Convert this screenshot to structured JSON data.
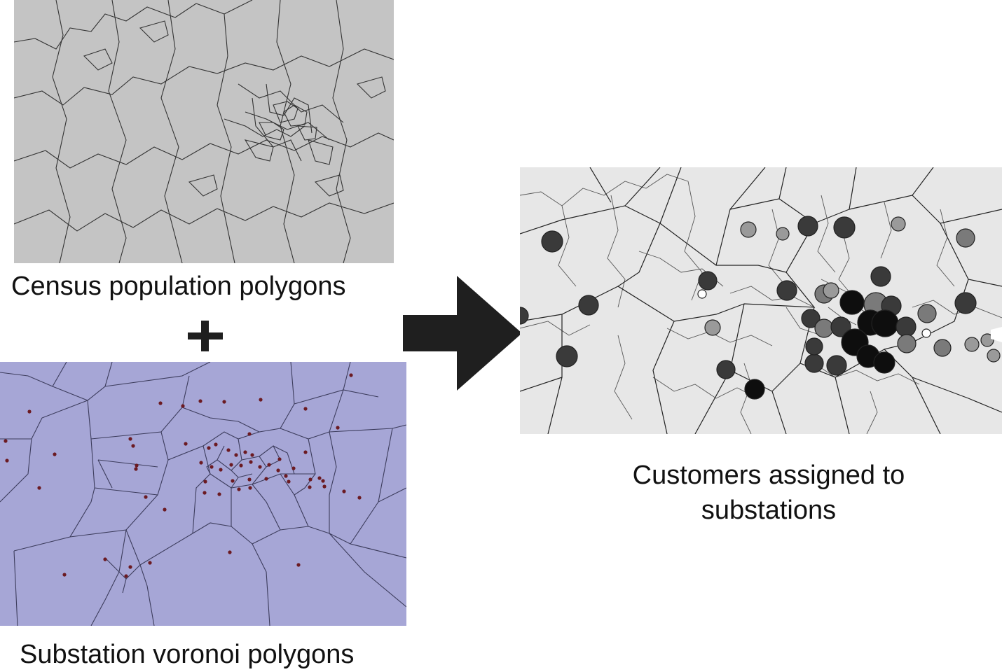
{
  "panels": {
    "census": {
      "caption": "Census population polygons"
    },
    "voronoi": {
      "caption": "Substation voronoi polygons"
    },
    "result": {
      "caption": "Customers assigned to substations"
    }
  },
  "icons": {
    "plus": "plus-icon",
    "arrow": "right-arrow-icon"
  },
  "colors": {
    "census_fill": "#c4c4c4",
    "voronoi_fill": "#a6a6d6",
    "result_fill": "#e7e7e7",
    "substation_dot": "#6b1a22",
    "arrow": "#1f1f1f"
  }
}
